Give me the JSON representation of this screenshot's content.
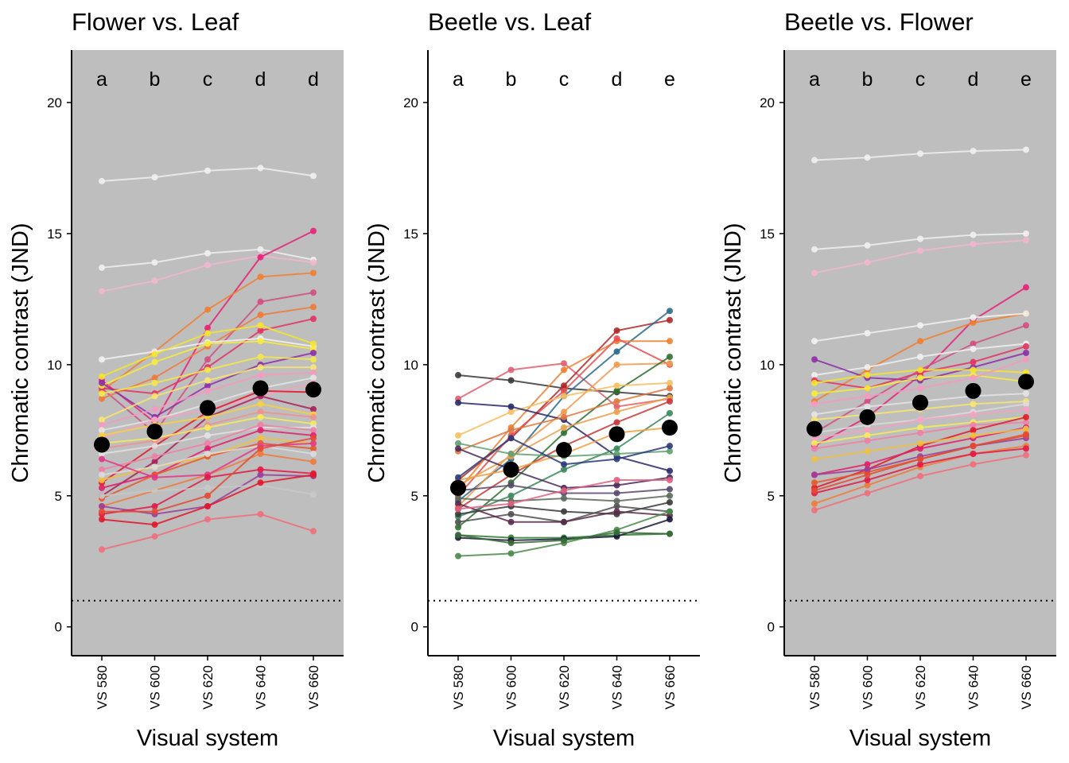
{
  "figure": {
    "panels_count": 3
  },
  "chart_data": [
    {
      "type": "line",
      "title": "Flower vs. Leaf",
      "xlabel": "Visual system",
      "ylabel": "Chromatic contrast (JND)",
      "categories": [
        "VS 580",
        "VS 600",
        "VS 620",
        "VS 640",
        "VS 660"
      ],
      "ylim": [
        -1.1,
        22
      ],
      "yticks": [
        0,
        5,
        10,
        15,
        20
      ],
      "background": "#bebebe",
      "threshold": 1,
      "significance_letters": [
        "a",
        "b",
        "c",
        "d",
        "d"
      ],
      "mean": [
        6.95,
        7.45,
        8.35,
        9.1,
        9.05
      ],
      "series": [
        {
          "color": "#f0f0f0",
          "values": [
            17.0,
            17.15,
            17.4,
            17.5,
            17.2
          ]
        },
        {
          "color": "#f0f0f0",
          "values": [
            13.7,
            13.9,
            14.25,
            14.4,
            14.0
          ]
        },
        {
          "color": "#f2b6cf",
          "values": [
            12.8,
            13.2,
            13.8,
            14.15,
            13.9
          ]
        },
        {
          "color": "#e8217a",
          "values": [
            9.4,
            7.8,
            11.4,
            14.1,
            15.1
          ]
        },
        {
          "color": "#f08030",
          "values": [
            9.0,
            10.5,
            12.1,
            13.35,
            13.5
          ]
        },
        {
          "color": "#d04f82",
          "values": [
            9.1,
            7.4,
            10.2,
            12.4,
            12.75
          ]
        },
        {
          "color": "#f07a3a",
          "values": [
            8.7,
            9.5,
            10.7,
            11.9,
            12.2
          ]
        },
        {
          "color": "#e33363",
          "values": [
            9.1,
            8.9,
            9.9,
            11.3,
            11.75
          ]
        },
        {
          "color": "#f2f2f2",
          "values": [
            10.2,
            10.5,
            10.85,
            11.0,
            10.7
          ]
        },
        {
          "color": "#f5e62b",
          "values": [
            9.55,
            10.4,
            11.2,
            11.5,
            10.8
          ]
        },
        {
          "color": "#f7ec3c",
          "values": [
            9.2,
            10.1,
            10.8,
            10.9,
            10.6
          ]
        },
        {
          "color": "#8e2fa8",
          "values": [
            9.3,
            8.0,
            9.2,
            10.0,
            10.45
          ]
        },
        {
          "color": "#f5e84a",
          "values": [
            8.9,
            9.3,
            9.8,
            10.3,
            10.2
          ]
        },
        {
          "color": "#f8e670",
          "values": [
            7.9,
            8.8,
            9.4,
            9.9,
            9.9
          ]
        },
        {
          "color": "#f59ac0",
          "values": [
            7.7,
            8.3,
            9.0,
            9.6,
            9.7
          ]
        },
        {
          "color": "#e4e4e4",
          "values": [
            7.5,
            7.9,
            8.5,
            9.1,
            9.5
          ]
        },
        {
          "color": "#f7a1c2",
          "values": [
            7.2,
            7.9,
            8.3,
            8.8,
            9.3
          ]
        },
        {
          "color": "#e2182a",
          "values": [
            5.5,
            6.9,
            8.2,
            9.0,
            8.95
          ]
        },
        {
          "color": "#a8205a",
          "values": [
            5.0,
            6.3,
            8.0,
            8.8,
            8.3
          ]
        },
        {
          "color": "#f7d040",
          "values": [
            7.3,
            7.7,
            8.0,
            8.5,
            8.1
          ]
        },
        {
          "color": "#f09090",
          "values": [
            6.8,
            7.1,
            7.7,
            8.2,
            8.0
          ]
        },
        {
          "color": "#f5ec5a",
          "values": [
            7.0,
            7.2,
            7.6,
            8.0,
            7.75
          ]
        },
        {
          "color": "#e2e2e2",
          "values": [
            6.6,
            6.9,
            7.3,
            7.6,
            7.6
          ]
        },
        {
          "color": "#f080a8",
          "values": [
            6.0,
            6.5,
            7.0,
            7.7,
            7.5
          ]
        },
        {
          "color": "#e01f6c",
          "values": [
            5.3,
            5.8,
            6.8,
            7.5,
            7.3
          ]
        },
        {
          "color": "#f0c040",
          "values": [
            5.6,
            6.1,
            6.5,
            7.2,
            7.0
          ]
        },
        {
          "color": "#e85828",
          "values": [
            4.9,
            5.8,
            6.5,
            7.0,
            6.8
          ]
        },
        {
          "color": "#dcdcdc",
          "values": [
            5.8,
            6.1,
            6.6,
            6.9,
            6.6
          ]
        },
        {
          "color": "#f07a3a",
          "values": [
            4.6,
            5.2,
            5.8,
            6.6,
            6.3
          ]
        },
        {
          "color": "#e3368a",
          "values": [
            6.4,
            5.7,
            5.8,
            6.9,
            7.0
          ]
        },
        {
          "color": "#9a3f9a",
          "values": [
            4.6,
            4.3,
            4.6,
            5.8,
            5.75
          ]
        },
        {
          "color": "#e21b46",
          "values": [
            4.3,
            4.6,
            5.7,
            6.0,
            5.85
          ]
        },
        {
          "color": "#c8c8c8",
          "values": [
            5.0,
            5.2,
            5.3,
            5.4,
            5.05
          ]
        },
        {
          "color": "#e2182a",
          "values": [
            4.1,
            3.9,
            4.6,
            5.5,
            5.8
          ]
        },
        {
          "color": "#f06f7c",
          "values": [
            2.95,
            3.45,
            4.1,
            4.3,
            3.65
          ]
        },
        {
          "color": "#e34a33",
          "values": [
            4.4,
            4.4,
            5.0,
            6.8,
            7.2
          ]
        }
      ]
    },
    {
      "type": "line",
      "title": "Beetle vs. Leaf",
      "xlabel": "Visual system",
      "ylabel": "Chromatic contrast (JND)",
      "categories": [
        "VS 580",
        "VS 600",
        "VS 620",
        "VS 640",
        "VS 660"
      ],
      "ylim": [
        -1.1,
        22
      ],
      "yticks": [
        0,
        5,
        10,
        15,
        20
      ],
      "background": "#ffffff",
      "threshold": 1,
      "significance_letters": [
        "a",
        "b",
        "c",
        "d",
        "e"
      ],
      "mean": [
        5.3,
        6.0,
        6.75,
        7.35,
        7.6
      ],
      "series": [
        {
          "color": "#3a3a3a",
          "values": [
            9.6,
            9.4,
            9.1,
            8.95,
            8.8
          ]
        },
        {
          "color": "#e06070",
          "values": [
            8.7,
            9.8,
            10.05,
            8.4,
            8.7
          ]
        },
        {
          "color": "#b02828",
          "values": [
            5.6,
            7.2,
            9.2,
            11.3,
            11.7
          ]
        },
        {
          "color": "#2a6a8a",
          "values": [
            4.8,
            6.4,
            8.8,
            10.5,
            12.05
          ]
        },
        {
          "color": "#f08030",
          "values": [
            5.2,
            7.6,
            9.8,
            10.9,
            10.9
          ]
        },
        {
          "color": "#e85050",
          "values": [
            5.0,
            7.3,
            9.0,
            11.0,
            10.0
          ]
        },
        {
          "color": "#f09a50",
          "values": [
            4.6,
            6.6,
            8.2,
            10.0,
            10.05
          ]
        },
        {
          "color": "#307030",
          "values": [
            3.8,
            5.5,
            7.4,
            9.0,
            10.3
          ]
        },
        {
          "color": "#f5c060",
          "values": [
            7.3,
            8.2,
            8.8,
            9.2,
            9.3
          ]
        },
        {
          "color": "#2a2a6a",
          "values": [
            8.55,
            8.4,
            7.9,
            6.5,
            5.95
          ]
        },
        {
          "color": "#e07840",
          "values": [
            6.7,
            7.5,
            8.0,
            8.6,
            9.1
          ]
        },
        {
          "color": "#e8a050",
          "values": [
            5.4,
            6.5,
            7.6,
            8.2,
            8.75
          ]
        },
        {
          "color": "#c83838",
          "values": [
            4.5,
            5.8,
            6.9,
            7.8,
            8.6
          ]
        },
        {
          "color": "#3a8a5a",
          "values": [
            4.2,
            5.0,
            6.0,
            6.8,
            8.15
          ]
        },
        {
          "color": "#f0a040",
          "values": [
            5.6,
            6.0,
            6.6,
            7.4,
            7.6
          ]
        },
        {
          "color": "#60a070",
          "values": [
            7.0,
            6.6,
            6.5,
            6.6,
            6.7
          ]
        },
        {
          "color": "#2a3a7a",
          "values": [
            5.7,
            7.2,
            6.2,
            6.4,
            6.9
          ]
        },
        {
          "color": "#4a2a5a",
          "values": [
            6.8,
            6.0,
            5.3,
            5.4,
            5.7
          ]
        },
        {
          "color": "#5a4a6a",
          "values": [
            5.2,
            5.4,
            5.1,
            5.1,
            5.25
          ]
        },
        {
          "color": "#5a6a5a",
          "values": [
            4.9,
            4.8,
            4.9,
            4.8,
            5.0
          ]
        },
        {
          "color": "#3a3a3a",
          "values": [
            4.3,
            4.6,
            4.4,
            4.3,
            4.75
          ]
        },
        {
          "color": "#505050",
          "values": [
            4.0,
            4.3,
            4.0,
            4.6,
            4.4
          ]
        },
        {
          "color": "#5a2a4a",
          "values": [
            4.7,
            4.0,
            4.0,
            4.4,
            4.25
          ]
        },
        {
          "color": "#2f7a2f",
          "values": [
            3.5,
            3.4,
            3.4,
            3.5,
            3.55
          ]
        },
        {
          "color": "#1a1a3a",
          "values": [
            3.4,
            3.3,
            3.35,
            3.45,
            4.1
          ]
        },
        {
          "color": "#4a8a4a",
          "values": [
            2.7,
            2.8,
            3.2,
            3.7,
            4.4
          ]
        },
        {
          "color": "#3a6a3a",
          "values": [
            3.5,
            3.2,
            3.3,
            3.6,
            3.55
          ]
        },
        {
          "color": "#e06080",
          "values": [
            4.5,
            4.7,
            5.2,
            5.6,
            5.6
          ]
        }
      ]
    },
    {
      "type": "line",
      "title": "Beetle vs. Flower",
      "xlabel": "Visual system",
      "ylabel": "Chromatic contrast (JND)",
      "categories": [
        "VS 580",
        "VS 600",
        "VS 620",
        "VS 640",
        "VS 660"
      ],
      "ylim": [
        -1.1,
        22
      ],
      "yticks": [
        0,
        5,
        10,
        15,
        20
      ],
      "background": "#bebebe",
      "threshold": 1,
      "significance_letters": [
        "a",
        "b",
        "c",
        "d",
        "e"
      ],
      "mean": [
        7.55,
        8.0,
        8.55,
        9.0,
        9.35
      ],
      "series": [
        {
          "color": "#f0f0f0",
          "values": [
            17.8,
            17.9,
            18.05,
            18.15,
            18.2
          ]
        },
        {
          "color": "#f0f0f0",
          "values": [
            14.4,
            14.55,
            14.8,
            14.95,
            15.0
          ]
        },
        {
          "color": "#f2b6cf",
          "values": [
            13.5,
            13.9,
            14.35,
            14.6,
            14.75
          ]
        },
        {
          "color": "#e8217a",
          "values": [
            6.9,
            8.0,
            9.6,
            11.7,
            12.95
          ]
        },
        {
          "color": "#f08030",
          "values": [
            8.6,
            9.8,
            10.9,
            11.6,
            11.95
          ]
        },
        {
          "color": "#d04f82",
          "values": [
            7.4,
            8.6,
            9.8,
            10.8,
            11.5
          ]
        },
        {
          "color": "#f2f2f2",
          "values": [
            10.9,
            11.2,
            11.5,
            11.8,
            11.95
          ]
        },
        {
          "color": "#f0f0f0",
          "values": [
            9.6,
            9.9,
            10.3,
            10.6,
            10.8
          ]
        },
        {
          "color": "#8e2fa8",
          "values": [
            10.2,
            9.5,
            9.4,
            9.9,
            10.45
          ]
        },
        {
          "color": "#e33363",
          "values": [
            9.4,
            9.1,
            9.7,
            10.1,
            10.7
          ]
        },
        {
          "color": "#f5e62b",
          "values": [
            9.3,
            9.6,
            9.8,
            9.8,
            9.7
          ]
        },
        {
          "color": "#f7ec3c",
          "values": [
            8.9,
            9.1,
            9.5,
            9.6,
            9.35
          ]
        },
        {
          "color": "#f59ac0",
          "values": [
            8.5,
            8.8,
            9.1,
            9.5,
            10.2
          ]
        },
        {
          "color": "#e4e4e4",
          "values": [
            8.1,
            8.4,
            8.6,
            8.8,
            8.9
          ]
        },
        {
          "color": "#f8e670",
          "values": [
            7.9,
            8.1,
            8.3,
            8.5,
            8.6
          ]
        },
        {
          "color": "#dcdcdc",
          "values": [
            7.4,
            7.7,
            7.9,
            8.2,
            8.5
          ]
        },
        {
          "color": "#f7a1c2",
          "values": [
            7.2,
            7.5,
            7.9,
            8.1,
            8.3
          ]
        },
        {
          "color": "#f5ec5a",
          "values": [
            7.0,
            7.3,
            7.6,
            7.8,
            8.0
          ]
        },
        {
          "color": "#f080a8",
          "values": [
            6.8,
            7.1,
            7.4,
            7.7,
            7.8
          ]
        },
        {
          "color": "#e2182a",
          "values": [
            5.3,
            6.0,
            6.9,
            7.5,
            8.0
          ]
        },
        {
          "color": "#e01f6c",
          "values": [
            5.8,
            6.2,
            6.8,
            7.2,
            7.6
          ]
        },
        {
          "color": "#f0c040",
          "values": [
            6.4,
            6.7,
            7.0,
            7.3,
            7.55
          ]
        },
        {
          "color": "#e85828",
          "values": [
            5.5,
            5.9,
            6.4,
            6.9,
            7.35
          ]
        },
        {
          "color": "#9a3f9a",
          "values": [
            5.8,
            6.0,
            6.5,
            6.9,
            7.2
          ]
        },
        {
          "color": "#f07a3a",
          "values": [
            4.7,
            5.4,
            6.1,
            6.6,
            6.9
          ]
        },
        {
          "color": "#e21b46",
          "values": [
            5.1,
            5.6,
            6.2,
            6.6,
            6.8
          ]
        },
        {
          "color": "#f06f7c",
          "values": [
            4.45,
            5.1,
            5.75,
            6.2,
            6.55
          ]
        },
        {
          "color": "#e34a33",
          "values": [
            5.2,
            5.8,
            6.4,
            6.9,
            7.3
          ]
        }
      ]
    }
  ]
}
